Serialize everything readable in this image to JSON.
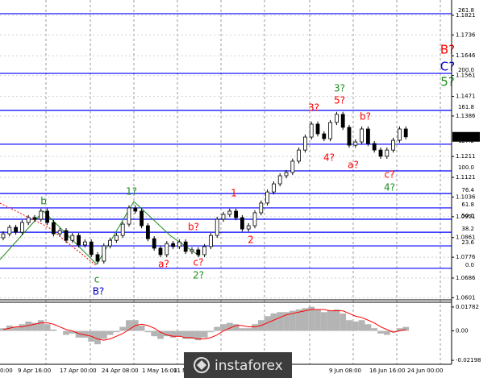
{
  "chart_data": [
    {
      "type": "candlestick",
      "ylim": [
        1.0592,
        1.1887
      ],
      "yticks": [
        1.1821,
        1.1736,
        1.1646,
        1.1561,
        1.1471,
        1.1386,
        1.1211,
        1.1121,
        1.1036,
        1.0951,
        1.0861,
        1.0776,
        1.0686,
        1.0601
      ],
      "grid": true,
      "current_price": 1.1296,
      "x_labels": [
        "0:00",
        "9 Apr 16:00",
        "17 Apr 00:00",
        "24 Apr 08:00",
        "1 May 16:00",
        "11 M",
        "9 Jun 08:00",
        "16 Jun 16:00",
        "24 Jun 00:00"
      ],
      "open": [
        1.086,
        1.0877,
        1.0905,
        1.0884,
        1.0926,
        1.0947,
        1.094,
        1.0975,
        1.0926,
        1.0877,
        1.0891,
        1.0849,
        1.087,
        1.0829,
        1.0842,
        1.0787,
        1.0759,
        1.0825,
        1.0849,
        1.087,
        1.0919,
        1.0989,
        1.0975,
        1.0912,
        1.0856,
        1.0815,
        1.0787,
        1.0835,
        1.0822,
        1.0842,
        1.0801,
        1.0808,
        1.0787,
        1.0822,
        1.087,
        1.094,
        1.0961,
        1.0975,
        1.0947,
        1.0898,
        1.0912,
        1.0968,
        1.101,
        1.1058,
        1.1093,
        1.1128,
        1.1142,
        1.1191,
        1.1239,
        1.1295,
        1.1351,
        1.1309,
        1.1288,
        1.1358,
        1.1393,
        1.1337,
        1.126,
        1.1274,
        1.133,
        1.1267,
        1.1239,
        1.1212,
        1.1239,
        1.1281,
        1.133
      ],
      "high": [
        1.0888,
        1.0916,
        1.0916,
        1.0937,
        1.0958,
        1.0958,
        1.0986,
        1.0986,
        1.0937,
        1.0902,
        1.0902,
        1.0881,
        1.0881,
        1.0853,
        1.0853,
        1.0798,
        1.0836,
        1.086,
        1.0881,
        1.093,
        1.1,
        1.1,
        1.0986,
        1.0923,
        1.0867,
        1.0826,
        1.0846,
        1.0846,
        1.0853,
        1.0853,
        1.0819,
        1.0819,
        1.0833,
        1.0881,
        1.0951,
        1.0972,
        1.0986,
        1.0986,
        1.0958,
        1.0923,
        1.0979,
        1.1021,
        1.1069,
        1.1104,
        1.1139,
        1.1153,
        1.1202,
        1.125,
        1.1306,
        1.1362,
        1.1362,
        1.132,
        1.1369,
        1.1404,
        1.1404,
        1.1348,
        1.1285,
        1.1341,
        1.1341,
        1.1278,
        1.125,
        1.125,
        1.1292,
        1.1341,
        1.1341
      ],
      "low": [
        1.0849,
        1.0866,
        1.0873,
        1.0873,
        1.0915,
        1.0929,
        1.0929,
        1.0915,
        1.0866,
        1.0866,
        1.0838,
        1.0838,
        1.0818,
        1.0818,
        1.0776,
        1.0748,
        1.0748,
        1.0814,
        1.0838,
        1.0859,
        1.0908,
        1.0964,
        1.0901,
        1.0845,
        1.0804,
        1.0776,
        1.0776,
        1.0811,
        1.0811,
        1.079,
        1.079,
        1.0776,
        1.0776,
        1.0811,
        1.0859,
        1.0929,
        1.095,
        1.0936,
        1.0887,
        1.0887,
        1.0901,
        1.0957,
        1.0999,
        1.1047,
        1.1082,
        1.1117,
        1.1131,
        1.118,
        1.1228,
        1.1284,
        1.1298,
        1.1277,
        1.1277,
        1.1347,
        1.1326,
        1.1249,
        1.1249,
        1.1263,
        1.1256,
        1.1228,
        1.1201,
        1.1201,
        1.1228,
        1.127,
        1.1285
      ],
      "close": [
        1.0877,
        1.0905,
        1.0884,
        1.0926,
        1.0947,
        1.094,
        1.0975,
        1.0926,
        1.0877,
        1.0891,
        1.0849,
        1.087,
        1.0829,
        1.0842,
        1.0787,
        1.0759,
        1.0825,
        1.0849,
        1.087,
        1.0919,
        1.0989,
        1.0975,
        1.0912,
        1.0856,
        1.0815,
        1.0787,
        1.0835,
        1.0822,
        1.0842,
        1.0801,
        1.0808,
        1.0787,
        1.0822,
        1.087,
        1.094,
        1.0961,
        1.0975,
        1.0947,
        1.0898,
        1.0912,
        1.0968,
        1.101,
        1.1058,
        1.1093,
        1.1128,
        1.1142,
        1.1191,
        1.1239,
        1.1295,
        1.1351,
        1.1309,
        1.1288,
        1.1358,
        1.1393,
        1.1337,
        1.126,
        1.1274,
        1.133,
        1.1267,
        1.1239,
        1.1212,
        1.1239,
        1.1281,
        1.133,
        1.1296
      ],
      "level_color": "#0000ff",
      "levels": [
        {
          "label": "261.8",
          "price": 1.1828
        },
        {
          "label": "200.0",
          "price": 1.157
        },
        {
          "label": "161.8",
          "price": 1.141
        },
        {
          "label": "127.2",
          "price": 1.1264
        },
        {
          "label": "100.0",
          "price": 1.1149
        },
        {
          "label": "76.4",
          "price": 1.1051
        },
        {
          "label": "61.8",
          "price": 1.0989
        },
        {
          "label": "50.0",
          "price": 1.094
        },
        {
          "label": "38.2",
          "price": 1.0884
        },
        {
          "label": "23.6",
          "price": 1.0825
        },
        {
          "label": "0.0",
          "price": 1.0728
        }
      ],
      "wave_labels": [
        {
          "text": "b",
          "color": "#1c8c1c"
        },
        {
          "text": "1?",
          "color": "#1c8c1c"
        },
        {
          "text": "c",
          "color": "#1c8c1c"
        },
        {
          "text": "B?",
          "color": "#0000cc"
        },
        {
          "text": "a?",
          "color": "#ff0000"
        },
        {
          "text": "b?",
          "color": "#ff0000"
        },
        {
          "text": "c?",
          "color": "#ff0000"
        },
        {
          "text": "2?",
          "color": "#1c8c1c"
        },
        {
          "text": "1",
          "color": "#ff0000"
        },
        {
          "text": "2",
          "color": "#ff0000"
        },
        {
          "text": "3?",
          "color": "#ff0000"
        },
        {
          "text": "4?",
          "color": "#ff0000"
        },
        {
          "text": "3?",
          "color": "#1c8c1c"
        },
        {
          "text": "5?",
          "color": "#ff0000"
        },
        {
          "text": "b?",
          "color": "#ff0000"
        },
        {
          "text": "a?",
          "color": "#ff0000"
        },
        {
          "text": "c?",
          "color": "#ff0000"
        },
        {
          "text": "4?",
          "color": "#1c8c1c"
        },
        {
          "text": "B?",
          "color": "#ff0000"
        },
        {
          "text": "C?",
          "color": "#0000cc"
        },
        {
          "text": "5?",
          "color": "#1c8c1c"
        }
      ]
    },
    {
      "type": "histogram-line",
      "ylim": [
        -0.02495,
        0.02139
      ],
      "yticks": [
        0.01782,
        {
          "value": 0,
          "label": "0.00"
        },
        -0.02198
      ],
      "series": [
        {
          "color": "#b4b4b4",
          "values": [
            0.002,
            0.004,
            0.003,
            0.005,
            0.007,
            0.006,
            0.008,
            0.005,
            0.001,
            0.0,
            -0.003,
            -0.002,
            -0.005,
            -0.005,
            -0.008,
            -0.01,
            -0.006,
            -0.003,
            -0.001,
            0.003,
            0.008,
            0.008,
            0.004,
            -0.001,
            -0.004,
            -0.006,
            -0.004,
            -0.005,
            -0.004,
            -0.006,
            -0.006,
            -0.007,
            -0.005,
            -0.001,
            0.003,
            0.005,
            0.006,
            0.005,
            0.002,
            0.002,
            0.005,
            0.008,
            0.011,
            0.013,
            0.014,
            0.014,
            0.015,
            0.016,
            0.017,
            0.018,
            0.016,
            0.014,
            0.015,
            0.016,
            0.013,
            0.008,
            0.007,
            0.008,
            0.005,
            0.002,
            -0.002,
            -0.003,
            -0.001,
            0.002,
            0.003
          ]
        },
        {
          "color": "#ff0000",
          "values": [
            0.001,
            0.002,
            0.003,
            0.003,
            0.004,
            0.005,
            0.006,
            0.006,
            0.005,
            0.003,
            0.001,
            0.0,
            -0.002,
            -0.003,
            -0.004,
            -0.006,
            -0.007,
            -0.006,
            -0.004,
            -0.002,
            0.001,
            0.004,
            0.005,
            0.004,
            0.002,
            -0.001,
            -0.003,
            -0.004,
            -0.004,
            -0.005,
            -0.005,
            -0.006,
            -0.006,
            -0.005,
            -0.003,
            0.0,
            0.002,
            0.004,
            0.004,
            0.003,
            0.003,
            0.004,
            0.006,
            0.008,
            0.01,
            0.012,
            0.013,
            0.014,
            0.015,
            0.016,
            0.016,
            0.016,
            0.015,
            0.015,
            0.015,
            0.013,
            0.011,
            0.01,
            0.008,
            0.006,
            0.003,
            0.001,
            -0.001,
            0.0,
            0.001
          ]
        }
      ]
    }
  ],
  "watermark": "instaforex"
}
